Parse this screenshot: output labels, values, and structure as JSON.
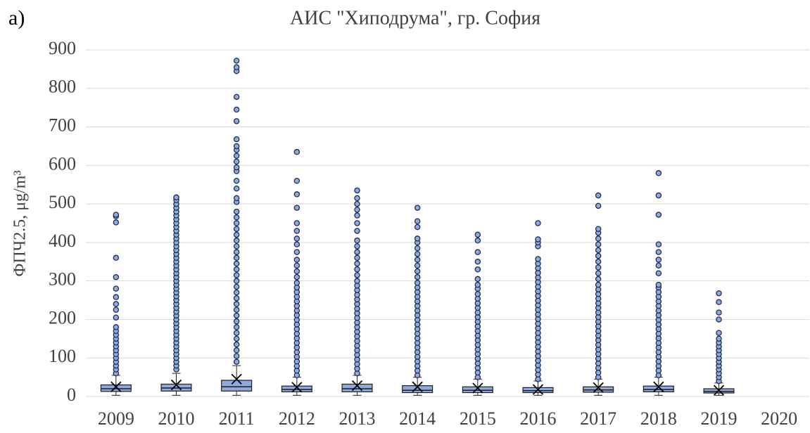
{
  "chart_data": {
    "type": "box",
    "panel_label": "a)",
    "title": "АИС \"Хиподрума\", гр. София",
    "y_label": "ФПЧ2.5, μg/m³",
    "categories": [
      "2009",
      "2010",
      "2011",
      "2012",
      "2013",
      "2014",
      "2015",
      "2016",
      "2017",
      "2018",
      "2019",
      "2020"
    ],
    "color": "#8faadc",
    "ylim": [
      0,
      900
    ],
    "yticks": [
      0,
      100,
      200,
      300,
      400,
      500,
      600,
      700,
      800,
      900
    ],
    "grid": true,
    "boxes": [
      {
        "whislo": 3,
        "q1": 13,
        "med": 20,
        "q3": 30,
        "whishi": 55,
        "mean": 25,
        "fliers": [
          60,
          70,
          80,
          90,
          100,
          110,
          120,
          130,
          140,
          150,
          160,
          170,
          180,
          205,
          225,
          240,
          258,
          280,
          310,
          360,
          452,
          468,
          472
        ]
      },
      {
        "whislo": 3,
        "q1": 14,
        "med": 22,
        "q3": 32,
        "whishi": 60,
        "mean": 30,
        "fliers": [
          70,
          80,
          90,
          100,
          110,
          120,
          130,
          140,
          150,
          160,
          170,
          180,
          190,
          200,
          210,
          220,
          230,
          240,
          250,
          260,
          270,
          280,
          290,
          300,
          310,
          320,
          330,
          340,
          350,
          360,
          370,
          380,
          390,
          400,
          410,
          420,
          430,
          440,
          450,
          460,
          470,
          480,
          490,
          500,
          510,
          517
        ]
      },
      {
        "whislo": 3,
        "q1": 14,
        "med": 25,
        "q3": 42,
        "whishi": 80,
        "mean": 45,
        "fliers": [
          90,
          105,
          120,
          135,
          150,
          165,
          180,
          195,
          210,
          225,
          240,
          255,
          270,
          285,
          300,
          315,
          330,
          345,
          360,
          375,
          390,
          405,
          420,
          435,
          450,
          465,
          480,
          505,
          515,
          540,
          560,
          585,
          595,
          610,
          625,
          640,
          650,
          668,
          715,
          745,
          778,
          845,
          855,
          872
        ]
      },
      {
        "whislo": 3,
        "q1": 12,
        "med": 18,
        "q3": 27,
        "whishi": 50,
        "mean": 24,
        "fliers": [
          55,
          67,
          79,
          91,
          103,
          115,
          127,
          139,
          151,
          163,
          175,
          187,
          199,
          211,
          223,
          235,
          247,
          259,
          271,
          283,
          295,
          310,
          325,
          340,
          355,
          375,
          395,
          410,
          430,
          450,
          490,
          525,
          560,
          635
        ]
      },
      {
        "whislo": 3,
        "q1": 12,
        "med": 20,
        "q3": 32,
        "whishi": 55,
        "mean": 28,
        "fliers": [
          60,
          72,
          84,
          96,
          108,
          120,
          132,
          144,
          156,
          168,
          180,
          192,
          204,
          216,
          228,
          240,
          252,
          264,
          276,
          288,
          300,
          315,
          330,
          345,
          360,
          375,
          390,
          405,
          430,
          450,
          470,
          485,
          500,
          515,
          535
        ]
      },
      {
        "whislo": 3,
        "q1": 10,
        "med": 16,
        "q3": 28,
        "whishi": 50,
        "mean": 25,
        "fliers": [
          55,
          67,
          79,
          91,
          103,
          115,
          127,
          139,
          151,
          163,
          175,
          187,
          199,
          211,
          223,
          235,
          247,
          259,
          271,
          283,
          295,
          310,
          325,
          340,
          355,
          370,
          385,
          400,
          410,
          440,
          455,
          490
        ]
      },
      {
        "whislo": 3,
        "q1": 10,
        "med": 16,
        "q3": 25,
        "whishi": 45,
        "mean": 22,
        "fliers": [
          50,
          62,
          74,
          86,
          98,
          110,
          122,
          134,
          146,
          158,
          170,
          182,
          194,
          206,
          218,
          230,
          242,
          254,
          266,
          280,
          290,
          305,
          330,
          350,
          375,
          405,
          420
        ]
      },
      {
        "whislo": 3,
        "q1": 10,
        "med": 15,
        "q3": 23,
        "whishi": 40,
        "mean": 18,
        "fliers": [
          45,
          57,
          69,
          81,
          93,
          105,
          117,
          129,
          141,
          153,
          165,
          177,
          189,
          201,
          213,
          225,
          237,
          249,
          261,
          273,
          285,
          297,
          309,
          321,
          333,
          345,
          357,
          390,
          400,
          408,
          450
        ]
      },
      {
        "whislo": 3,
        "q1": 11,
        "med": 17,
        "q3": 25,
        "whishi": 45,
        "mean": 23,
        "fliers": [
          50,
          62,
          74,
          86,
          98,
          110,
          122,
          134,
          146,
          158,
          170,
          182,
          194,
          206,
          218,
          230,
          242,
          254,
          266,
          278,
          290,
          305,
          320,
          335,
          350,
          365,
          380,
          395,
          410,
          425,
          435,
          495,
          522
        ]
      },
      {
        "whislo": 3,
        "q1": 12,
        "med": 18,
        "q3": 27,
        "whishi": 50,
        "mean": 25,
        "fliers": [
          55,
          67,
          79,
          91,
          103,
          115,
          127,
          139,
          151,
          163,
          175,
          187,
          199,
          211,
          223,
          235,
          247,
          259,
          271,
          283,
          290,
          320,
          340,
          355,
          375,
          395,
          472,
          522,
          580
        ]
      },
      {
        "whislo": 3,
        "q1": 9,
        "med": 13,
        "q3": 20,
        "whishi": 35,
        "mean": 16,
        "fliers": [
          40,
          50,
          60,
          70,
          80,
          90,
          100,
          110,
          120,
          130,
          140,
          150,
          165,
          200,
          218,
          245,
          268
        ]
      },
      {
        "whislo": null,
        "q1": null,
        "med": null,
        "q3": null,
        "whishi": null,
        "mean": null,
        "fliers": []
      }
    ]
  }
}
